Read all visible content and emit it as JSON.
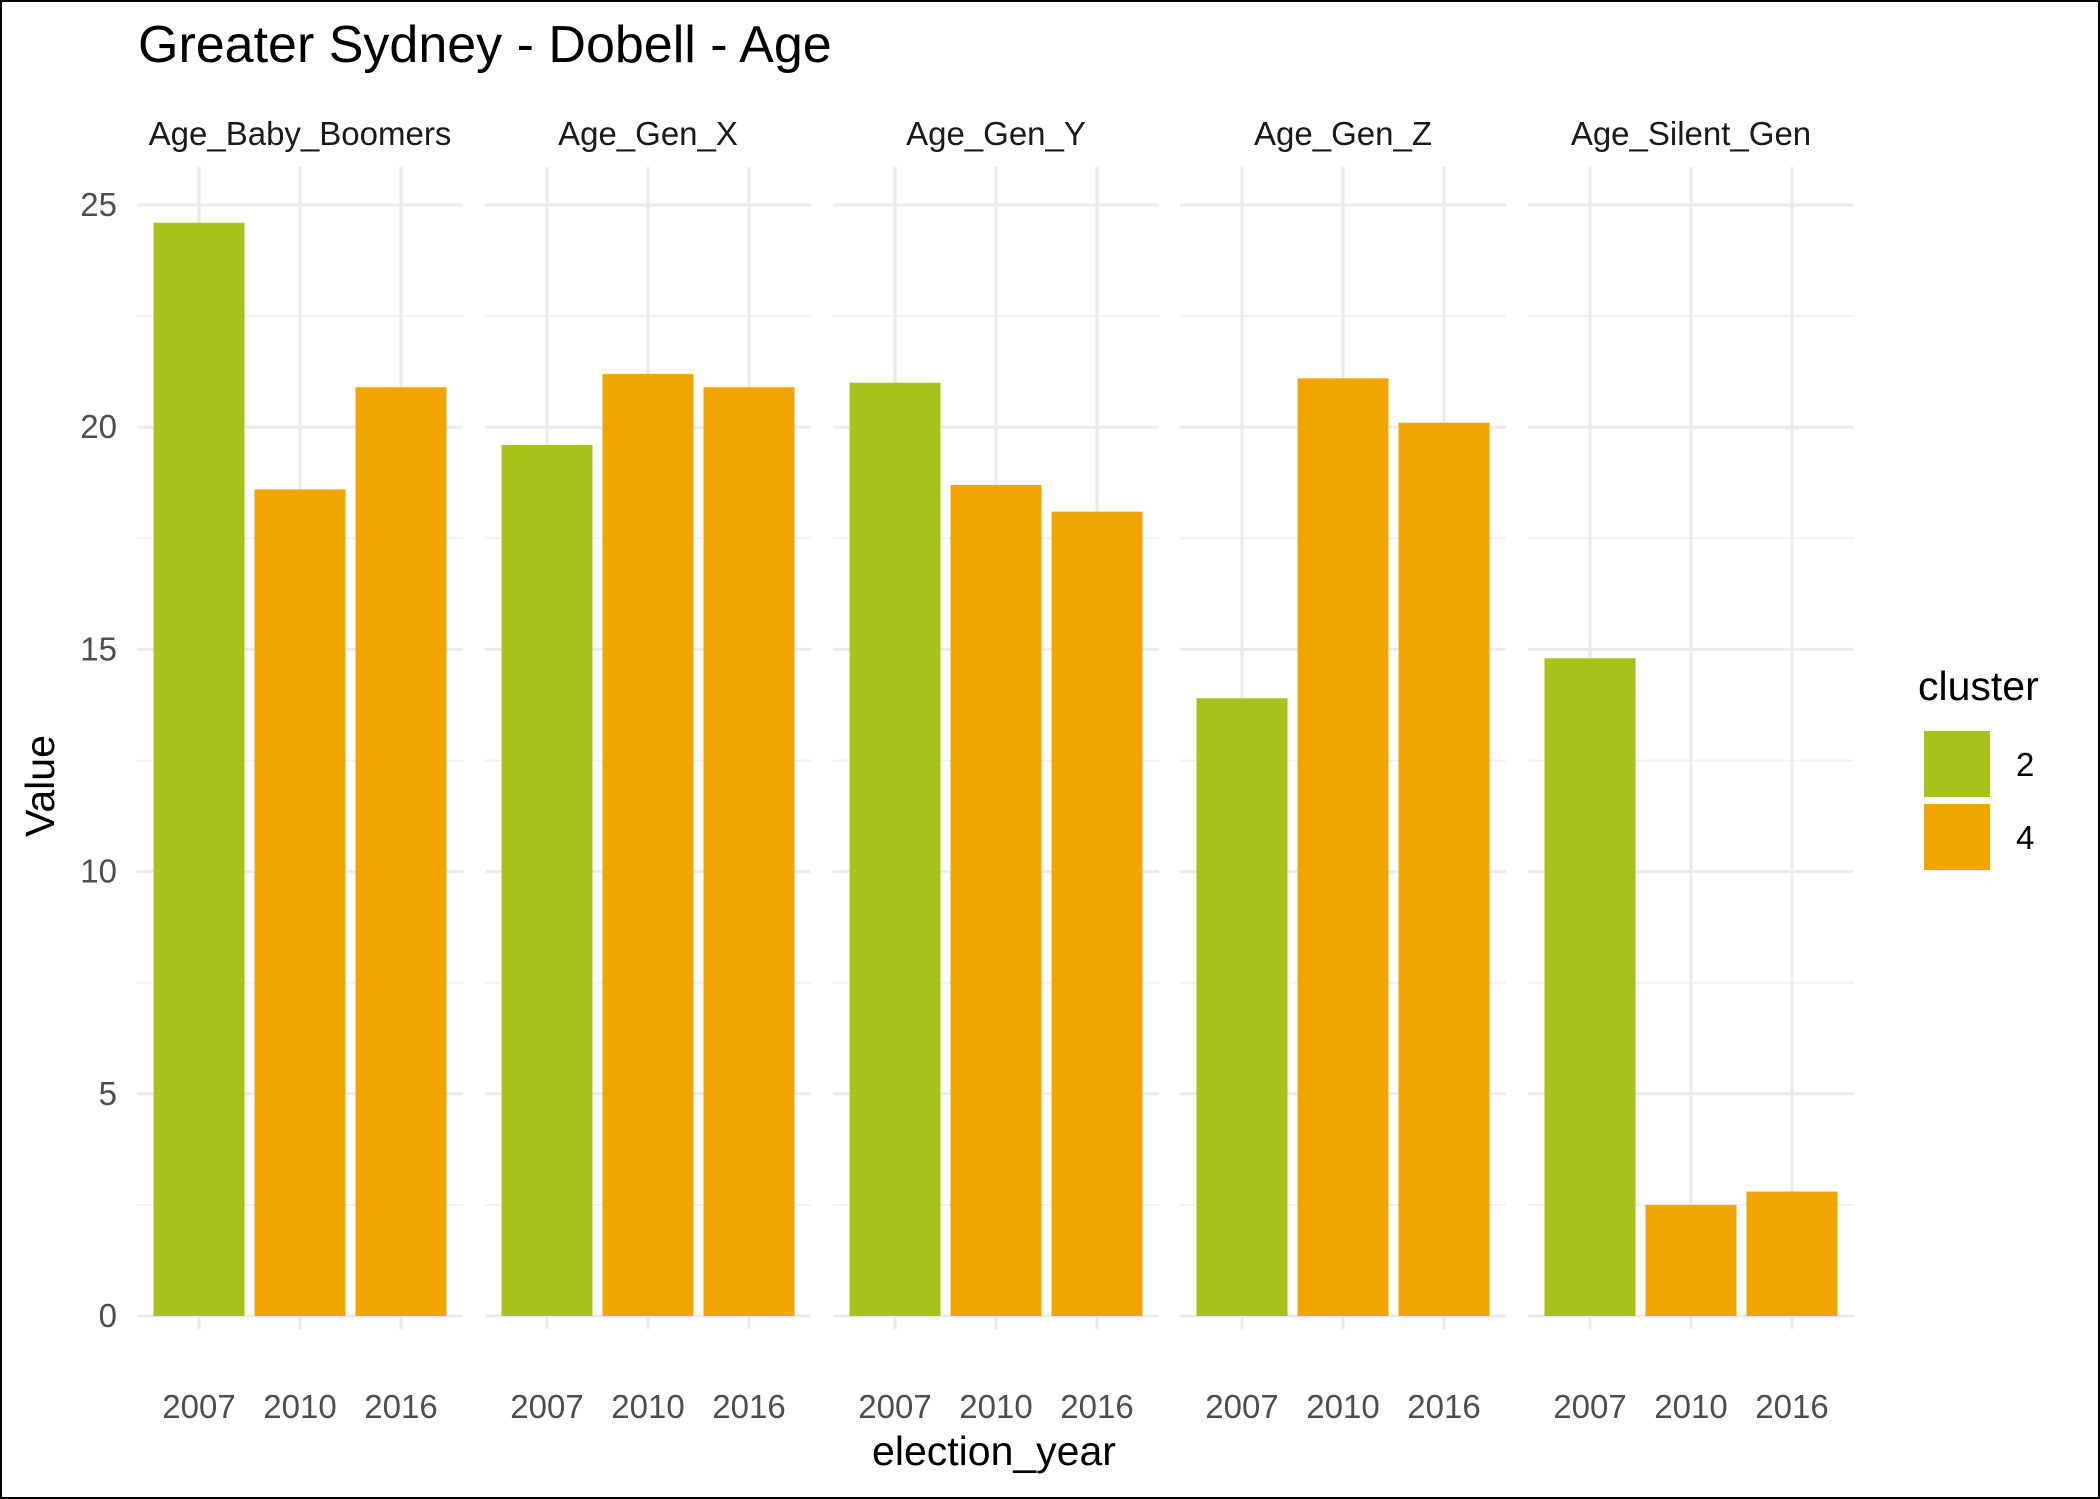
{
  "chart_data": {
    "type": "bar",
    "title": "Greater Sydney - Dobell - Age",
    "xlabel": "election_year",
    "ylabel": "Value",
    "ylim": [
      0,
      25
    ],
    "yticks": [
      0,
      5,
      10,
      15,
      20,
      25
    ],
    "categories": [
      "2007",
      "2010",
      "2016"
    ],
    "grid": true,
    "legend": {
      "title": "cluster",
      "position": "right",
      "entries": [
        {
          "label": "2",
          "color": "#A9C11B"
        },
        {
          "label": "4",
          "color": "#F0A500"
        }
      ]
    },
    "facets": [
      {
        "label": "Age_Baby_Boomers",
        "values": [
          24.6,
          18.6,
          20.9
        ],
        "clusters": [
          "2",
          "4",
          "4"
        ]
      },
      {
        "label": "Age_Gen_X",
        "values": [
          19.6,
          21.2,
          20.9
        ],
        "clusters": [
          "2",
          "4",
          "4"
        ]
      },
      {
        "label": "Age_Gen_Y",
        "values": [
          21.0,
          18.7,
          18.1
        ],
        "clusters": [
          "2",
          "4",
          "4"
        ]
      },
      {
        "label": "Age_Gen_Z",
        "values": [
          13.9,
          21.1,
          20.1
        ],
        "clusters": [
          "2",
          "4",
          "4"
        ]
      },
      {
        "label": "Age_Silent_Gen",
        "values": [
          14.8,
          2.5,
          2.8
        ],
        "clusters": [
          "2",
          "4",
          "4"
        ]
      }
    ]
  }
}
